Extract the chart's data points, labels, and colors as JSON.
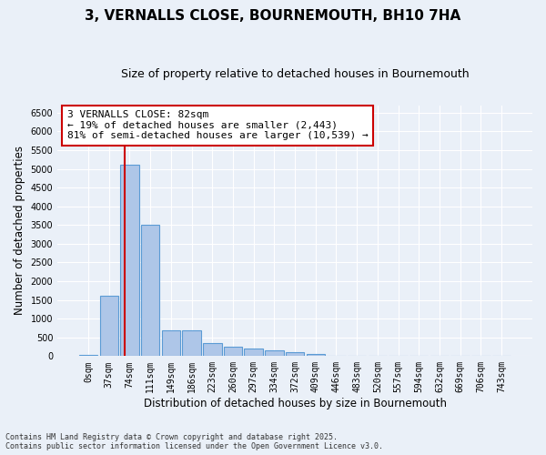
{
  "title": "3, VERNALLS CLOSE, BOURNEMOUTH, BH10 7HA",
  "subtitle": "Size of property relative to detached houses in Bournemouth",
  "xlabel": "Distribution of detached houses by size in Bournemouth",
  "ylabel": "Number of detached properties",
  "bin_labels": [
    "0sqm",
    "37sqm",
    "74sqm",
    "111sqm",
    "149sqm",
    "186sqm",
    "223sqm",
    "260sqm",
    "297sqm",
    "334sqm",
    "372sqm",
    "409sqm",
    "446sqm",
    "483sqm",
    "520sqm",
    "557sqm",
    "594sqm",
    "632sqm",
    "669sqm",
    "706sqm",
    "743sqm"
  ],
  "bar_values": [
    30,
    1600,
    5100,
    3500,
    700,
    680,
    350,
    250,
    200,
    150,
    100,
    50,
    0,
    0,
    0,
    0,
    0,
    0,
    0,
    0,
    0
  ],
  "bar_color": "#aec6e8",
  "bar_edge_color": "#5b9bd5",
  "bar_edge_width": 0.8,
  "property_line_color": "#cc0000",
  "annotation_text": "3 VERNALLS CLOSE: 82sqm\n← 19% of detached houses are smaller (2,443)\n81% of semi-detached houses are larger (10,539) →",
  "annotation_box_color": "#ffffff",
  "annotation_box_edge": "#cc0000",
  "ylim": [
    0,
    6700
  ],
  "yticks": [
    0,
    500,
    1000,
    1500,
    2000,
    2500,
    3000,
    3500,
    4000,
    4500,
    5000,
    5500,
    6000,
    6500
  ],
  "footer_line1": "Contains HM Land Registry data © Crown copyright and database right 2025.",
  "footer_line2": "Contains public sector information licensed under the Open Government Licence v3.0.",
  "bg_color": "#eaf0f8",
  "plot_bg_color": "#eaf0f8",
  "grid_color": "#ffffff",
  "tick_fontsize": 7,
  "axis_label_fontsize": 8.5,
  "title_fontsize": 11,
  "subtitle_fontsize": 9
}
